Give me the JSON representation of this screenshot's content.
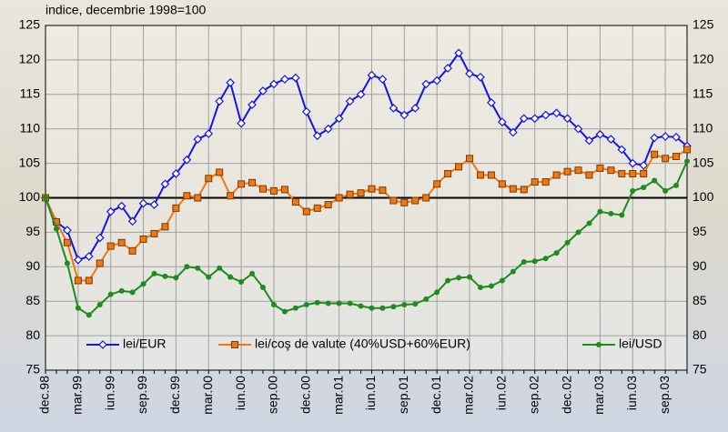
{
  "chart_data": {
    "type": "line",
    "ylabel": "indice, decembrie 1998=100",
    "categories": [
      "dec.98",
      null,
      null,
      "mar.99",
      null,
      null,
      "iun.99",
      null,
      null,
      "sep.99",
      null,
      null,
      "dec.99",
      null,
      null,
      "mar.00",
      null,
      null,
      "iun.00",
      null,
      null,
      "sep.00",
      null,
      null,
      "dec.00",
      null,
      null,
      "mar.01",
      null,
      null,
      "iun.01",
      null,
      null,
      "sep.01",
      null,
      null,
      "dec.01",
      null,
      null,
      "mar.02",
      null,
      null,
      "iun.02",
      null,
      null,
      "sep.02",
      null,
      null,
      "dec.02",
      null,
      null,
      "mar.03",
      null,
      null,
      "iun.03",
      null,
      null,
      "sep.03",
      null,
      null
    ],
    "series": [
      {
        "name": "lei/EUR",
        "color": "#1414e6",
        "marker": "diamond",
        "values": [
          100,
          96.5,
          95.3,
          91,
          91.5,
          94.2,
          98,
          98.8,
          96.6,
          99.2,
          99,
          102,
          103.5,
          105.5,
          108.5,
          109.3,
          114,
          116.7,
          110.8,
          113.5,
          115.5,
          116.5,
          117.2,
          117.4,
          112.5,
          109,
          110,
          111.5,
          114,
          115,
          117.8,
          117.2,
          113,
          112,
          113,
          116.5,
          117,
          118.8,
          121,
          118,
          117.5,
          113.8,
          111,
          109.5,
          111.5,
          111.5,
          112,
          112.3,
          111.5,
          110,
          108.3,
          109.2,
          108.5,
          107,
          105,
          104.7,
          108.7,
          108.9,
          108.8,
          107.5
        ]
      },
      {
        "name": "lei/coş de valute (40%USD+60%EUR)",
        "color": "#f07814",
        "marker": "square",
        "values": [
          100,
          96.5,
          93.5,
          88,
          88,
          90.5,
          93,
          93.5,
          92.3,
          94,
          94.8,
          95.8,
          98.5,
          100.3,
          100,
          102.8,
          103.7,
          100.3,
          102,
          102.2,
          101.3,
          101,
          101.2,
          99.4,
          98,
          98.5,
          99,
          100,
          100.5,
          100.7,
          101.3,
          101.1,
          99.6,
          99.3,
          99.6,
          100,
          102,
          103.5,
          104.5,
          105.7,
          103.3,
          103.3,
          102,
          101.3,
          101.2,
          102.3,
          102.3,
          103.3,
          103.8,
          104,
          103.3,
          104.3,
          104,
          103.5,
          103.5,
          103.5,
          106.3,
          105.7,
          106,
          107
        ]
      },
      {
        "name": "lei/USD",
        "color": "#1e8c1e",
        "marker": "circle",
        "values": [
          100,
          95.5,
          90.5,
          84,
          83,
          84.5,
          86,
          86.5,
          86.3,
          87.5,
          89,
          88.6,
          88.4,
          90,
          89.8,
          88.5,
          89.8,
          88.5,
          87.8,
          89,
          87,
          84.5,
          83.5,
          84,
          84.5,
          84.8,
          84.7,
          84.7,
          84.7,
          84.3,
          84,
          84,
          84.2,
          84.5,
          84.6,
          85.3,
          86.3,
          88,
          88.4,
          88.5,
          87,
          87.2,
          88,
          89.3,
          90.7,
          90.8,
          91.2,
          92,
          93.5,
          95,
          96.3,
          98,
          97.7,
          97.5,
          101,
          101.5,
          102.5,
          101,
          101.8,
          105.3
        ]
      }
    ],
    "ylim": [
      75,
      125
    ],
    "yticks": [
      75,
      80,
      85,
      90,
      95,
      100,
      105,
      110,
      115,
      120,
      125
    ],
    "reference_line": 100,
    "grid": true,
    "legend": "bottom"
  }
}
